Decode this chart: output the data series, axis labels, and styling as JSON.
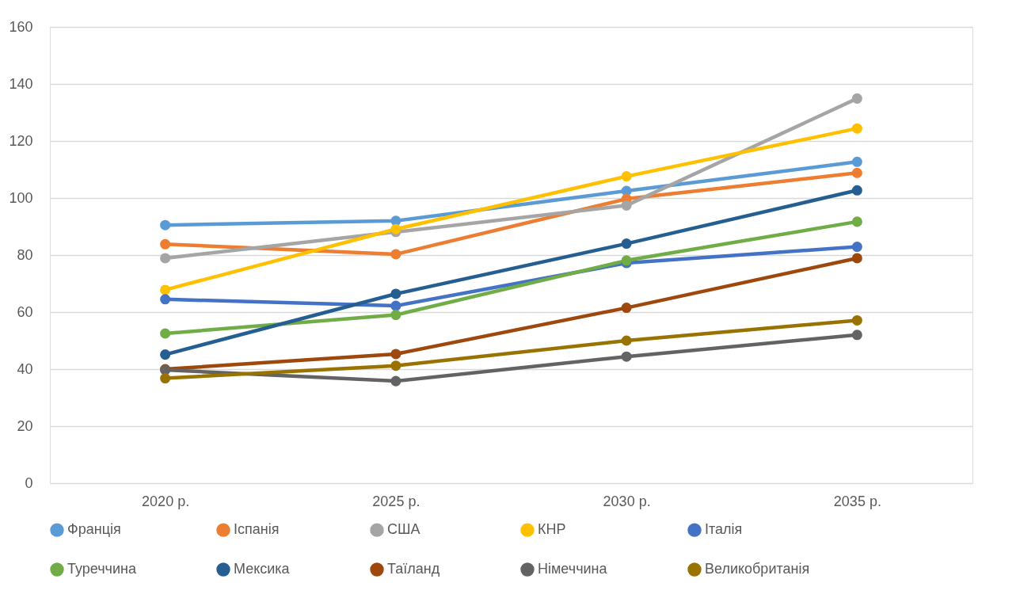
{
  "chart_data": {
    "type": "line",
    "categories": [
      "2020 р.",
      "2025 р.",
      "2030 р.",
      "2035 р."
    ],
    "ylim": [
      0,
      160
    ],
    "yticks": [
      0,
      20,
      40,
      60,
      80,
      100,
      120,
      140,
      160
    ],
    "grid": "y",
    "legend": "bottom",
    "marker": "circle",
    "line_style": "solid",
    "series": [
      {
        "name": "Франція",
        "color": "#5b9bd5",
        "values": [
          90.5,
          92.0,
          102.5,
          112.7
        ]
      },
      {
        "name": "Іспанія",
        "color": "#ed7d31",
        "values": [
          83.8,
          80.3,
          99.7,
          108.8
        ]
      },
      {
        "name": "США",
        "color": "#a5a5a5",
        "values": [
          78.9,
          88.1,
          97.4,
          134.9
        ]
      },
      {
        "name": "КНР",
        "color": "#ffc000",
        "values": [
          67.8,
          89.1,
          107.6,
          124.4
        ]
      },
      {
        "name": "Італія",
        "color": "#4472c4",
        "values": [
          64.5,
          62.2,
          77.2,
          82.9
        ]
      },
      {
        "name": "Туреччина",
        "color": "#70ad47",
        "values": [
          52.5,
          59.0,
          78.1,
          91.7
        ]
      },
      {
        "name": "Мексика",
        "color": "#255e91",
        "values": [
          45.1,
          66.4,
          84.0,
          102.7
        ]
      },
      {
        "name": "Таїланд",
        "color": "#9e480e",
        "values": [
          40.0,
          45.3,
          61.5,
          78.9
        ]
      },
      {
        "name": "Німеччина",
        "color": "#636363",
        "values": [
          39.7,
          35.8,
          44.4,
          52.0
        ]
      },
      {
        "name": "Великобританія",
        "color": "#997300",
        "values": [
          36.8,
          41.2,
          50.0,
          57.1
        ]
      }
    ]
  }
}
